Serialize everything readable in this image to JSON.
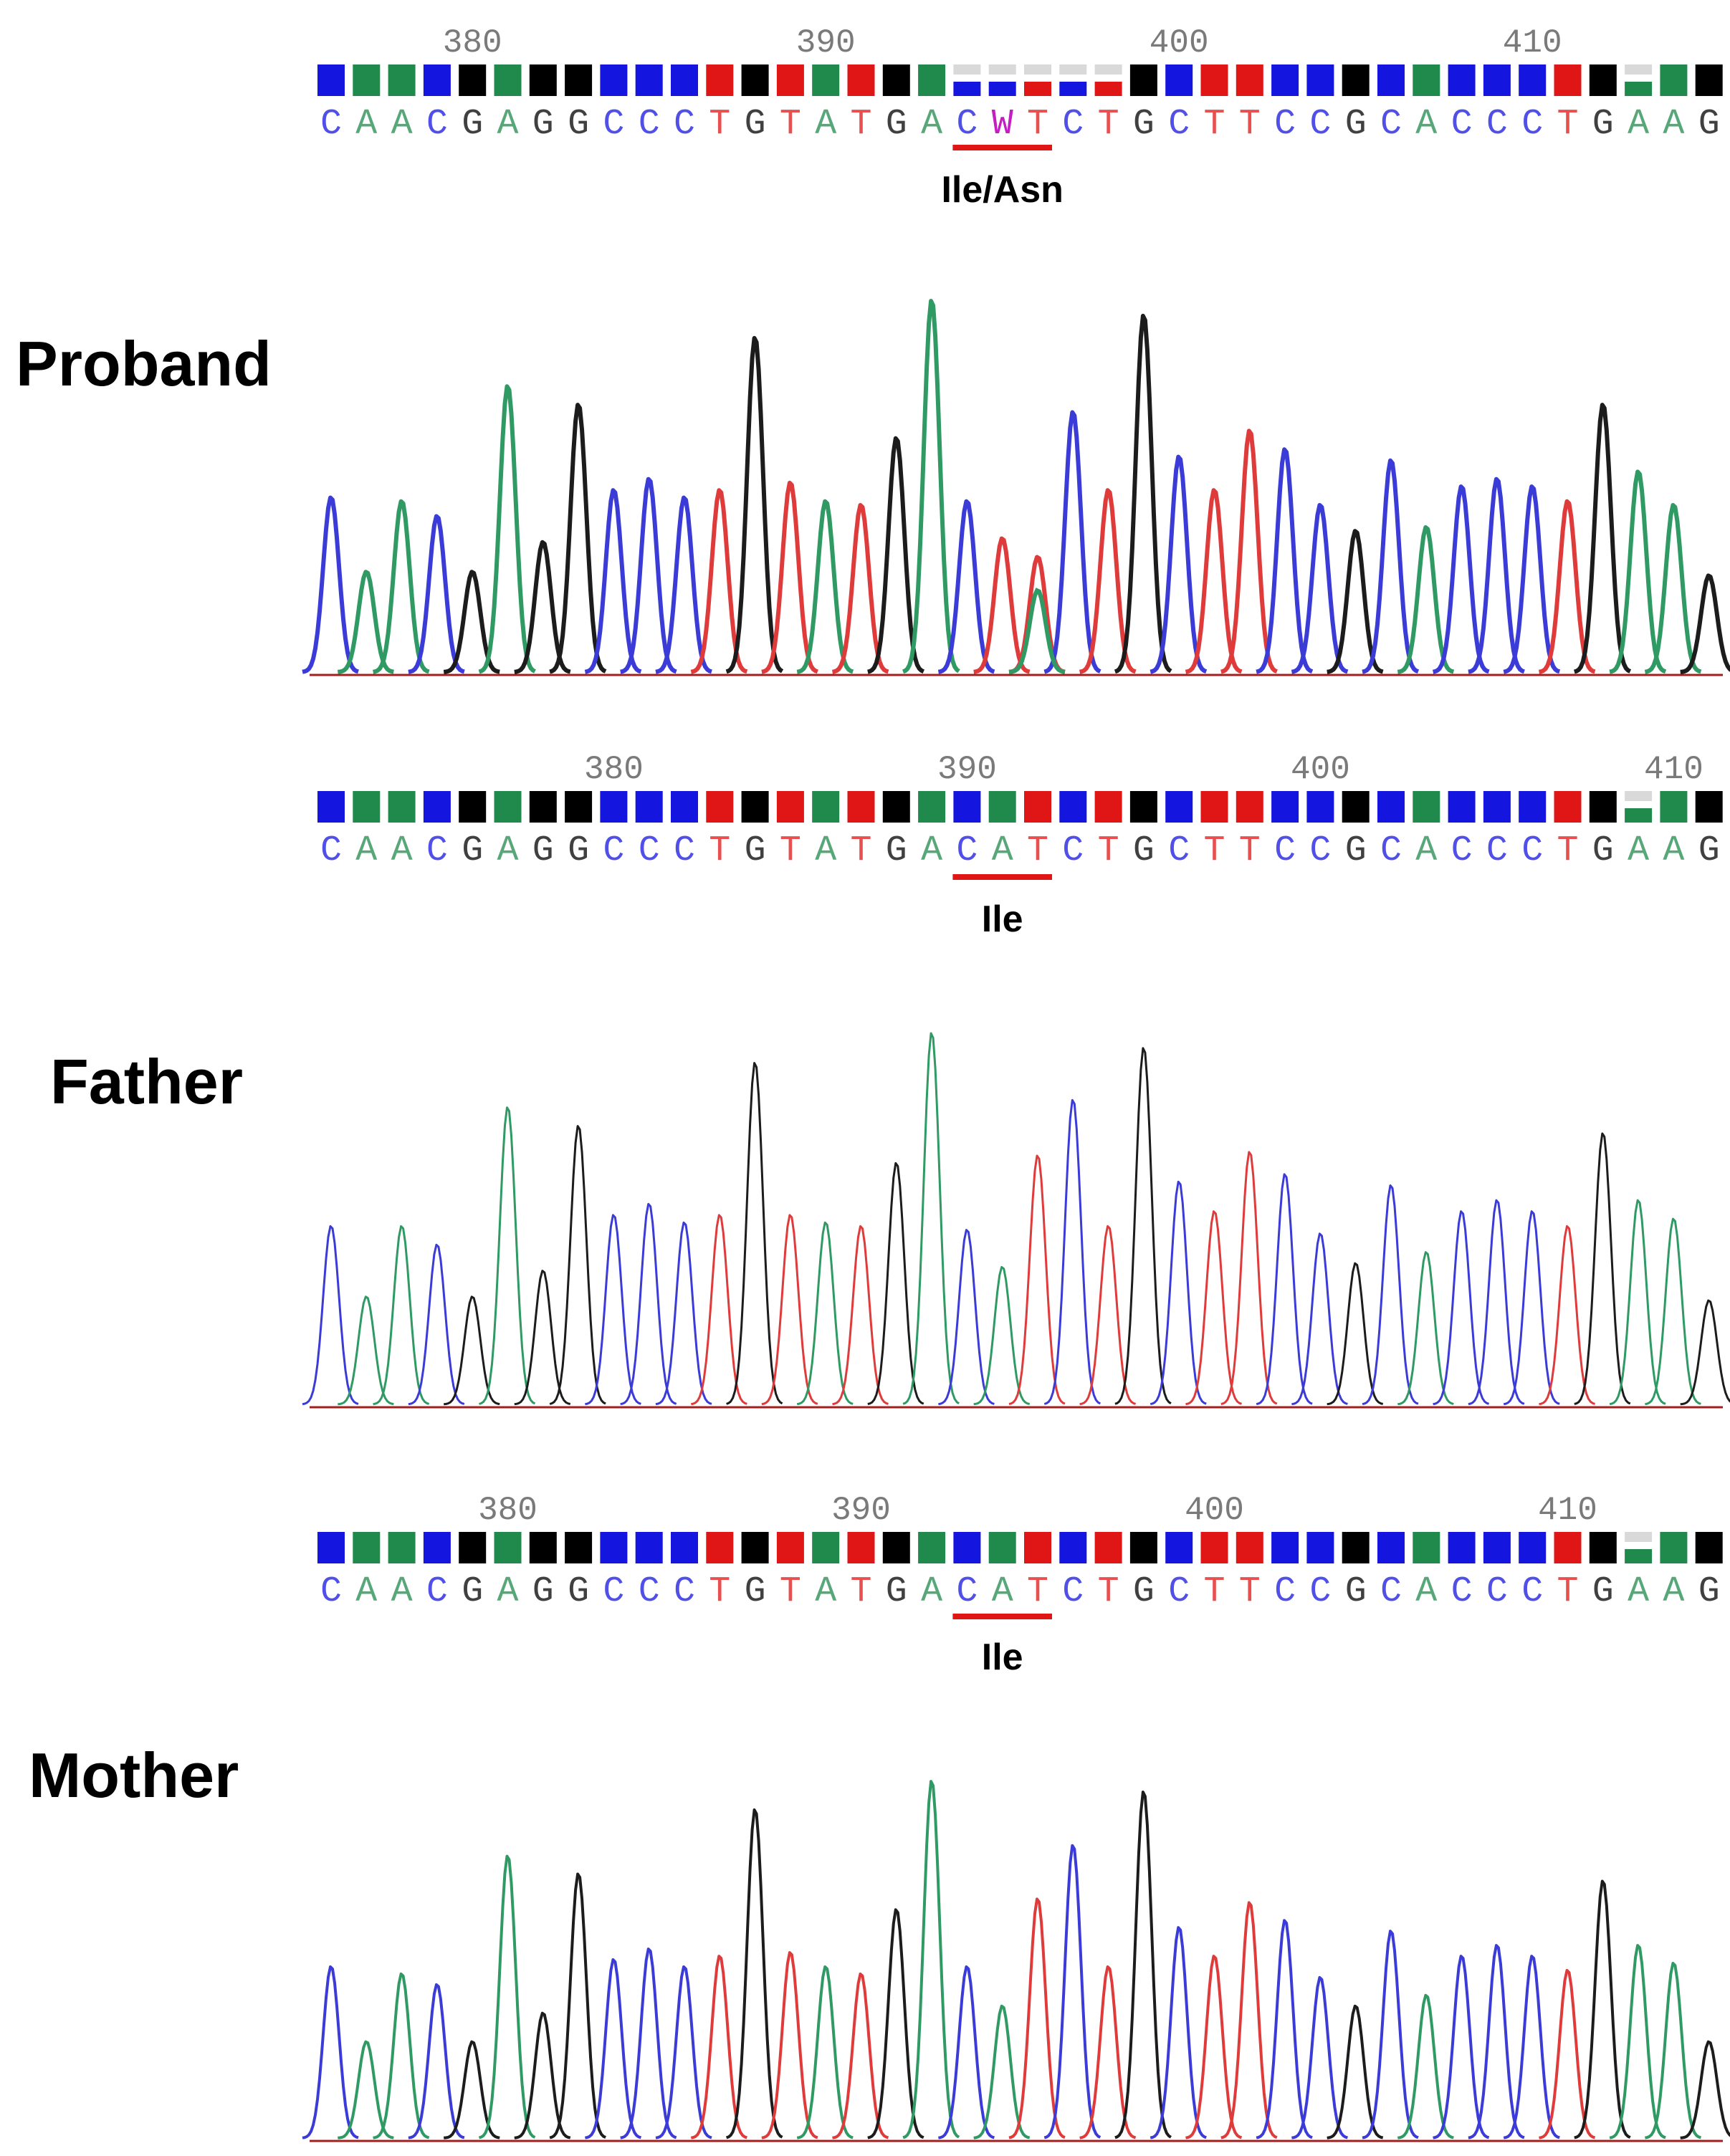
{
  "colors": {
    "A": "#1f8a4c",
    "C": "#1515e0",
    "G": "#000000",
    "T": "#e01515",
    "ambiguous": "#c21ec2",
    "trace_C": "#3b3bd8",
    "trace_A": "#2f9a63",
    "trace_G": "#1c1c1c",
    "trace_T": "#e03b3b",
    "codon_underline": "#e01515",
    "quality_low": "#d9d9d9"
  },
  "panels": [
    {
      "name": "proband",
      "label": "Proband",
      "sequence": "CAACGAGGCCCTGTATGACWTCTGCTTCCGCACCCTGAAG",
      "ticks": [
        "380",
        "390",
        "400",
        "410"
      ],
      "first_tick_base": 4,
      "mutation_base": 19,
      "codon_start": 18,
      "codon_label": "Ile/Asn",
      "quality": "HHHHHHHHHHHHHHHHHHLLLLLHHHHHHHHHHHHHHLHH",
      "trace_heights": [
        0.47,
        0.27,
        0.46,
        0.42,
        0.27,
        0.77,
        0.35,
        0.72,
        0.49,
        0.52,
        0.47,
        0.49,
        0.9,
        0.51,
        0.46,
        0.45,
        0.63,
        1.0,
        0.46,
        0.36,
        0.31,
        0.7,
        0.49,
        0.96,
        0.58,
        0.49,
        0.65,
        0.6,
        0.45,
        0.38,
        0.57,
        0.39,
        0.5,
        0.52,
        0.5,
        0.46,
        0.72,
        0.54,
        0.45,
        0.26
      ],
      "secondary_peaks": [
        {
          "base": 20,
          "letter": "A",
          "height": 0.22
        }
      ]
    },
    {
      "name": "father",
      "label": "Father",
      "sequence": "CAACGAGGCCCTGTATGACATCTGCTTCCGCACCCTGAAG",
      "ticks": [
        "380",
        "390",
        "400",
        "410"
      ],
      "first_tick_base": 8,
      "mutation_base": null,
      "codon_start": 18,
      "codon_label": "Ile",
      "quality": "HHHHHHHHHHHHHHHHHHHHHHHHHHHHHHHHHHHHHLHH",
      "trace_heights": [
        0.48,
        0.29,
        0.48,
        0.43,
        0.29,
        0.8,
        0.36,
        0.75,
        0.51,
        0.54,
        0.49,
        0.51,
        0.92,
        0.51,
        0.49,
        0.48,
        0.65,
        1.0,
        0.47,
        0.37,
        0.67,
        0.82,
        0.48,
        0.96,
        0.6,
        0.52,
        0.68,
        0.62,
        0.46,
        0.38,
        0.59,
        0.41,
        0.52,
        0.55,
        0.52,
        0.48,
        0.73,
        0.55,
        0.5,
        0.28
      ],
      "secondary_peaks": []
    },
    {
      "name": "mother",
      "label": "Mother",
      "sequence": "CAACGAGGCCCTGTATGACATCTGCTTCCGCACCCTGAAG",
      "ticks": [
        "380",
        "390",
        "400",
        "410"
      ],
      "first_tick_base": 5,
      "mutation_base": null,
      "codon_start": 18,
      "codon_label": "Ile",
      "quality": "HHHHHHHHHHHHHHHHHHHHHHHHHHHHHHHHHHHHHLHH",
      "trace_heights": [
        0.48,
        0.27,
        0.46,
        0.43,
        0.27,
        0.79,
        0.35,
        0.74,
        0.5,
        0.53,
        0.48,
        0.51,
        0.92,
        0.52,
        0.48,
        0.46,
        0.64,
        1.0,
        0.48,
        0.37,
        0.67,
        0.82,
        0.48,
        0.97,
        0.59,
        0.51,
        0.66,
        0.61,
        0.45,
        0.37,
        0.58,
        0.4,
        0.51,
        0.54,
        0.51,
        0.47,
        0.72,
        0.54,
        0.49,
        0.27
      ],
      "secondary_peaks": []
    }
  ]
}
